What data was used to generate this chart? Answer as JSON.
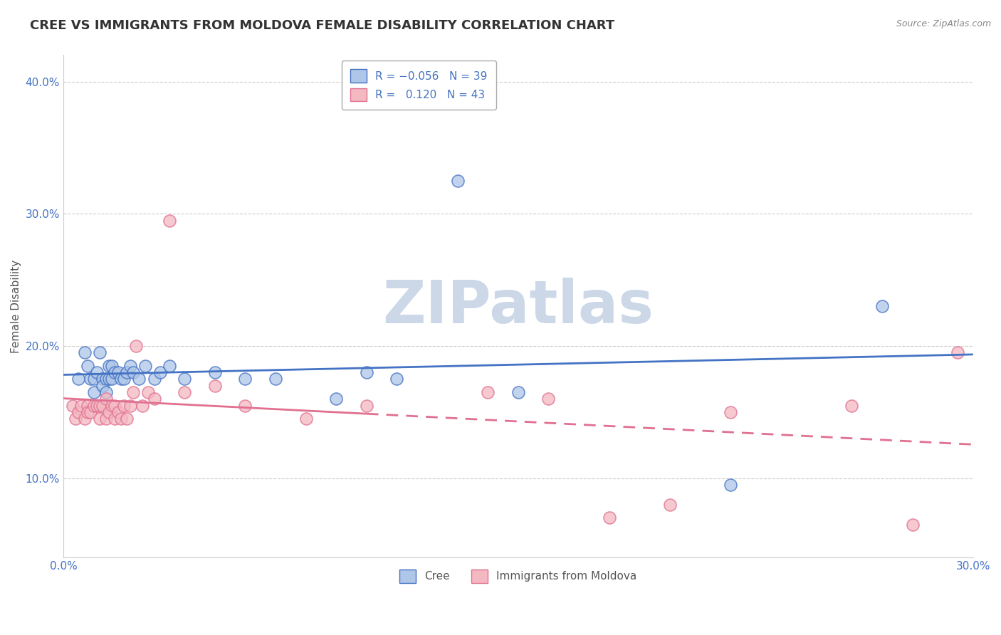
{
  "title": "CREE VS IMMIGRANTS FROM MOLDOVA FEMALE DISABILITY CORRELATION CHART",
  "source": "Source: ZipAtlas.com",
  "ylabel": "Female Disability",
  "xlim": [
    0.0,
    0.3
  ],
  "ylim": [
    0.04,
    0.42
  ],
  "yticks": [
    0.1,
    0.2,
    0.3,
    0.4
  ],
  "ytick_labels": [
    "10.0%",
    "20.0%",
    "30.0%",
    "40.0%"
  ],
  "xticks": [
    0.0,
    0.05,
    0.1,
    0.15,
    0.2,
    0.25,
    0.3
  ],
  "xtick_labels": [
    "0.0%",
    "",
    "",
    "",
    "",
    "",
    "30.0%"
  ],
  "cree_color": "#aec6e8",
  "moldova_color": "#f4b8c1",
  "cree_line_color": "#4472c4",
  "moldova_line_color": "#e07090",
  "watermark_text": "ZIPatlas",
  "cree_x": [
    0.005,
    0.007,
    0.008,
    0.009,
    0.01,
    0.01,
    0.011,
    0.012,
    0.013,
    0.013,
    0.014,
    0.014,
    0.015,
    0.015,
    0.016,
    0.016,
    0.017,
    0.018,
    0.019,
    0.02,
    0.021,
    0.022,
    0.023,
    0.025,
    0.027,
    0.03,
    0.032,
    0.035,
    0.04,
    0.05,
    0.06,
    0.07,
    0.09,
    0.1,
    0.11,
    0.13,
    0.15,
    0.22,
    0.27
  ],
  "cree_y": [
    0.175,
    0.195,
    0.185,
    0.175,
    0.175,
    0.165,
    0.18,
    0.195,
    0.175,
    0.17,
    0.165,
    0.175,
    0.185,
    0.175,
    0.175,
    0.185,
    0.18,
    0.18,
    0.175,
    0.175,
    0.18,
    0.185,
    0.18,
    0.175,
    0.185,
    0.175,
    0.18,
    0.185,
    0.175,
    0.18,
    0.175,
    0.175,
    0.16,
    0.18,
    0.175,
    0.325,
    0.165,
    0.095,
    0.23
  ],
  "moldova_x": [
    0.003,
    0.004,
    0.005,
    0.006,
    0.007,
    0.008,
    0.008,
    0.009,
    0.01,
    0.011,
    0.012,
    0.012,
    0.013,
    0.014,
    0.014,
    0.015,
    0.016,
    0.017,
    0.017,
    0.018,
    0.019,
    0.02,
    0.021,
    0.022,
    0.023,
    0.024,
    0.026,
    0.028,
    0.03,
    0.035,
    0.04,
    0.05,
    0.06,
    0.08,
    0.1,
    0.14,
    0.16,
    0.18,
    0.2,
    0.22,
    0.26,
    0.28,
    0.295
  ],
  "moldova_y": [
    0.155,
    0.145,
    0.15,
    0.155,
    0.145,
    0.155,
    0.15,
    0.15,
    0.155,
    0.155,
    0.155,
    0.145,
    0.155,
    0.16,
    0.145,
    0.15,
    0.155,
    0.145,
    0.155,
    0.15,
    0.145,
    0.155,
    0.145,
    0.155,
    0.165,
    0.2,
    0.155,
    0.165,
    0.16,
    0.295,
    0.165,
    0.17,
    0.155,
    0.145,
    0.155,
    0.165,
    0.16,
    0.07,
    0.08,
    0.15,
    0.155,
    0.065,
    0.195
  ],
  "background_color": "#ffffff",
  "grid_color": "#cccccc",
  "title_fontsize": 13,
  "axis_fontsize": 11,
  "tick_fontsize": 11,
  "watermark_color": "#ccd8e8",
  "watermark_fontsize": 60
}
